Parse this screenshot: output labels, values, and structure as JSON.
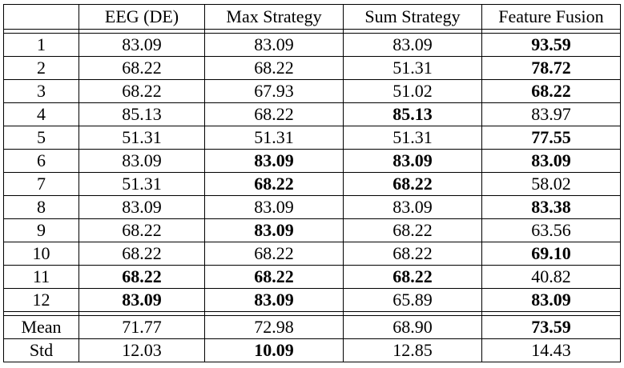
{
  "table": {
    "headers": [
      "",
      "EEG (DE)",
      "Max Strategy",
      "Sum Strategy",
      "Feature Fusion"
    ],
    "rows": [
      {
        "label": "1",
        "values": [
          "83.09",
          "83.09",
          "83.09",
          "93.59"
        ],
        "bold": [
          false,
          false,
          false,
          true
        ]
      },
      {
        "label": "2",
        "values": [
          "68.22",
          "68.22",
          "51.31",
          "78.72"
        ],
        "bold": [
          false,
          false,
          false,
          true
        ]
      },
      {
        "label": "3",
        "values": [
          "68.22",
          "67.93",
          "51.02",
          "68.22"
        ],
        "bold": [
          false,
          false,
          false,
          true
        ]
      },
      {
        "label": "4",
        "values": [
          "85.13",
          "68.22",
          "85.13",
          "83.97"
        ],
        "bold": [
          false,
          false,
          true,
          false
        ]
      },
      {
        "label": "5",
        "values": [
          "51.31",
          "51.31",
          "51.31",
          "77.55"
        ],
        "bold": [
          false,
          false,
          false,
          true
        ]
      },
      {
        "label": "6",
        "values": [
          "83.09",
          "83.09",
          "83.09",
          "83.09"
        ],
        "bold": [
          false,
          true,
          true,
          true
        ]
      },
      {
        "label": "7",
        "values": [
          "51.31",
          "68.22",
          "68.22",
          "58.02"
        ],
        "bold": [
          false,
          true,
          true,
          false
        ]
      },
      {
        "label": "8",
        "values": [
          "83.09",
          "83.09",
          "83.09",
          "83.38"
        ],
        "bold": [
          false,
          false,
          false,
          true
        ]
      },
      {
        "label": "9",
        "values": [
          "68.22",
          "83.09",
          "68.22",
          "63.56"
        ],
        "bold": [
          false,
          true,
          false,
          false
        ]
      },
      {
        "label": "10",
        "values": [
          "68.22",
          "68.22",
          "68.22",
          "69.10"
        ],
        "bold": [
          false,
          false,
          false,
          true
        ]
      },
      {
        "label": "11",
        "values": [
          "68.22",
          "68.22",
          "68.22",
          "40.82"
        ],
        "bold": [
          true,
          true,
          true,
          false
        ]
      },
      {
        "label": "12",
        "values": [
          "83.09",
          "83.09",
          "65.89",
          "83.09"
        ],
        "bold": [
          true,
          true,
          false,
          true
        ]
      }
    ],
    "summary": [
      {
        "label": "Mean",
        "values": [
          "71.77",
          "72.98",
          "68.90",
          "73.59"
        ],
        "bold": [
          false,
          false,
          false,
          true
        ]
      },
      {
        "label": "Std",
        "values": [
          "12.03",
          "10.09",
          "12.85",
          "14.43"
        ],
        "bold": [
          false,
          true,
          false,
          false
        ]
      }
    ]
  }
}
